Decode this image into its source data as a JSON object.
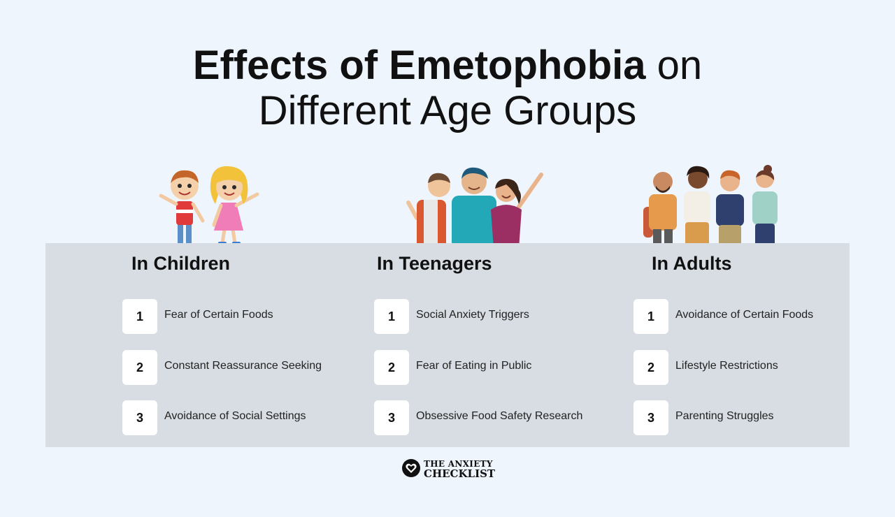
{
  "title": {
    "line1_bold": "Effects of Emetophobia",
    "line1_light": "on",
    "line2": "Different Age Groups"
  },
  "groups": [
    {
      "heading": "In Children",
      "items": [
        {
          "num": "1",
          "text": "Fear of Certain Foods"
        },
        {
          "num": "2",
          "text": "Constant Reassurance Seeking"
        },
        {
          "num": "3",
          "text": "Avoidance of Social Settings"
        }
      ]
    },
    {
      "heading": "In Teenagers",
      "items": [
        {
          "num": "1",
          "text": "Social Anxiety Triggers"
        },
        {
          "num": "2",
          "text": "Fear of Eating in Public"
        },
        {
          "num": "3",
          "text": "Obsessive Food Safety Research"
        }
      ]
    },
    {
      "heading": "In Adults",
      "items": [
        {
          "num": "1",
          "text": "Avoidance of Certain Foods"
        },
        {
          "num": "2",
          "text": "Lifestyle Restrictions"
        },
        {
          "num": "3",
          "text": "Parenting Struggles"
        }
      ]
    }
  ],
  "logo": {
    "line1": "THE ANXIETY",
    "line2": "CHECKLIST",
    "icon": "heart-icon"
  },
  "colors": {
    "background": "#eef5fc",
    "panel": "#d8dde3",
    "box": "#ffffff",
    "text": "#111111"
  }
}
